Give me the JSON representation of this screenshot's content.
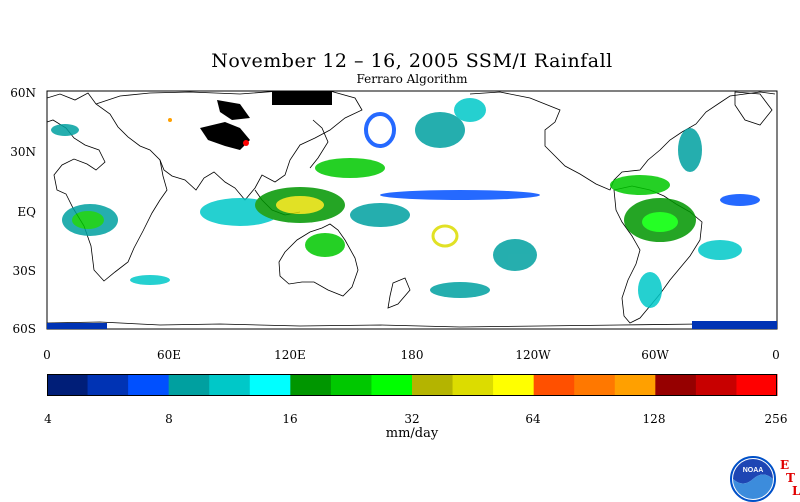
{
  "title": "November 12 – 16, 2005 SSM/I Rainfall",
  "subtitle": "Ferraro Algorithm",
  "lat_labels": [
    "60N",
    "30N",
    "EQ",
    "30S",
    "60S"
  ],
  "lon_labels": [
    "0",
    "60E",
    "120E",
    "180",
    "120W",
    "60W",
    "0"
  ],
  "colorbar": {
    "ticks": [
      "4",
      "8",
      "16",
      "32",
      "64",
      "128",
      "256"
    ],
    "unit": "mm/day",
    "colors": [
      "#001e78",
      "#0033b4",
      "#0050ff",
      "#00a0a0",
      "#00c8c8",
      "#00ffff",
      "#009600",
      "#00c800",
      "#00ff00",
      "#b4b400",
      "#dcdc00",
      "#ffff00",
      "#ff5000",
      "#ff7800",
      "#ffa000",
      "#960000",
      "#c80000",
      "#ff0000"
    ]
  },
  "logo": {
    "text": "NOAA",
    "letters": [
      "E",
      "T",
      "L"
    ]
  }
}
